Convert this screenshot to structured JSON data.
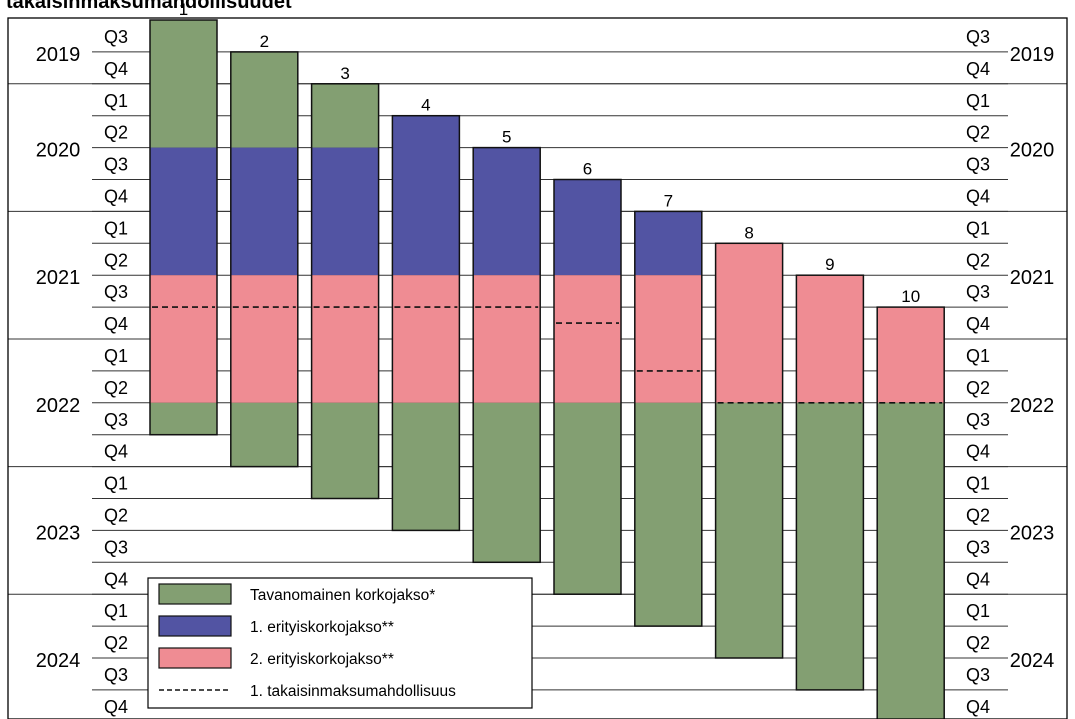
{
  "title_fragment": "takaisinmaksumahdollisuudet",
  "chart_data": {
    "type": "bar",
    "subtype": "floating-stacked-timeline",
    "time_axis": {
      "start": "2019 Q3",
      "end": "2024 Q4",
      "years": [
        {
          "year": "2019",
          "quarters": [
            "Q3",
            "Q4"
          ]
        },
        {
          "year": "2020",
          "quarters": [
            "Q1",
            "Q2",
            "Q3",
            "Q4"
          ]
        },
        {
          "year": "2021",
          "quarters": [
            "Q1",
            "Q2",
            "Q3",
            "Q4"
          ]
        },
        {
          "year": "2022",
          "quarters": [
            "Q1",
            "Q2",
            "Q3",
            "Q4"
          ]
        },
        {
          "year": "2023",
          "quarters": [
            "Q1",
            "Q2",
            "Q3",
            "Q4"
          ]
        },
        {
          "year": "2024",
          "quarters": [
            "Q1",
            "Q2",
            "Q3",
            "Q4"
          ]
        }
      ]
    },
    "bars": [
      {
        "label": "1",
        "segments": [
          {
            "period": "Tavanomainen korkojakso*",
            "start": "2019 Q3",
            "end": "2020 Q2"
          },
          {
            "period": "1. erityiskorkojakso**",
            "start": "2020 Q3",
            "end": "2021 Q2"
          },
          {
            "period": "2. erityiskorkojakso**",
            "start": "2021 Q3",
            "end": "2022 Q2"
          },
          {
            "period": "Tavanomainen korkojakso*",
            "start": "2022 Q3",
            "end": "2022 Q3"
          }
        ],
        "repayment_option": "2021 Q3/Q4"
      },
      {
        "label": "2",
        "segments": [
          {
            "period": "Tavanomainen korkojakso*",
            "start": "2019 Q4",
            "end": "2020 Q2"
          },
          {
            "period": "1. erityiskorkojakso**",
            "start": "2020 Q3",
            "end": "2021 Q2"
          },
          {
            "period": "2. erityiskorkojakso**",
            "start": "2021 Q3",
            "end": "2022 Q2"
          },
          {
            "period": "Tavanomainen korkojakso*",
            "start": "2022 Q3",
            "end": "2022 Q4"
          }
        ],
        "repayment_option": "2021 Q3/Q4"
      },
      {
        "label": "3",
        "segments": [
          {
            "period": "Tavanomainen korkojakso*",
            "start": "2020 Q1",
            "end": "2020 Q2"
          },
          {
            "period": "1. erityiskorkojakso**",
            "start": "2020 Q3",
            "end": "2021 Q2"
          },
          {
            "period": "2. erityiskorkojakso**",
            "start": "2021 Q3",
            "end": "2022 Q2"
          },
          {
            "period": "Tavanomainen korkojakso*",
            "start": "2022 Q3",
            "end": "2023 Q1"
          }
        ],
        "repayment_option": "2021 Q3/Q4"
      },
      {
        "label": "4",
        "segments": [
          {
            "period": "1. erityiskorkojakso**",
            "start": "2020 Q2",
            "end": "2021 Q2"
          },
          {
            "period": "2. erityiskorkojakso**",
            "start": "2021 Q3",
            "end": "2022 Q2"
          },
          {
            "period": "Tavanomainen korkojakso*",
            "start": "2022 Q3",
            "end": "2023 Q2"
          }
        ],
        "repayment_option": "2021 Q3/Q4"
      },
      {
        "label": "5",
        "segments": [
          {
            "period": "1. erityiskorkojakso**",
            "start": "2020 Q3",
            "end": "2021 Q2"
          },
          {
            "period": "2. erityiskorkojakso**",
            "start": "2021 Q3",
            "end": "2022 Q2"
          },
          {
            "period": "Tavanomainen korkojakso*",
            "start": "2022 Q3",
            "end": "2023 Q3"
          }
        ],
        "repayment_option": "2021 Q3/Q4"
      },
      {
        "label": "6",
        "segments": [
          {
            "period": "1. erityiskorkojakso**",
            "start": "2020 Q4",
            "end": "2021 Q2"
          },
          {
            "period": "2. erityiskorkojakso**",
            "start": "2021 Q3",
            "end": "2022 Q2"
          },
          {
            "period": "Tavanomainen korkojakso*",
            "start": "2022 Q3",
            "end": "2023 Q4"
          }
        ],
        "repayment_option": "2021 Q4"
      },
      {
        "label": "7",
        "segments": [
          {
            "period": "1. erityiskorkojakso**",
            "start": "2021 Q1",
            "end": "2021 Q2"
          },
          {
            "period": "2. erityiskorkojakso**",
            "start": "2021 Q3",
            "end": "2022 Q2"
          },
          {
            "period": "Tavanomainen korkojakso*",
            "start": "2022 Q3",
            "end": "2024 Q1"
          }
        ],
        "repayment_option": "2022 Q1/Q2"
      },
      {
        "label": "8",
        "segments": [
          {
            "period": "2. erityiskorkojakso**",
            "start": "2021 Q2",
            "end": "2022 Q2"
          },
          {
            "period": "Tavanomainen korkojakso*",
            "start": "2022 Q3",
            "end": "2024 Q2"
          }
        ],
        "repayment_option": "2022 Q2/Q3"
      },
      {
        "label": "9",
        "segments": [
          {
            "period": "2. erityiskorkojakso**",
            "start": "2021 Q3",
            "end": "2022 Q2"
          },
          {
            "period": "Tavanomainen korkojakso*",
            "start": "2022 Q3",
            "end": "2024 Q3"
          }
        ],
        "repayment_option": "2022 Q2/Q3"
      },
      {
        "label": "10",
        "segments": [
          {
            "period": "2. erityiskorkojakso**",
            "start": "2021 Q4",
            "end": "2022 Q2"
          },
          {
            "period": "Tavanomainen korkojakso*",
            "start": "2022 Q3",
            "end": "2024 Q4"
          }
        ],
        "repayment_option": "2022 Q2/Q3"
      }
    ],
    "legend": {
      "placement": "bottom-left",
      "entries": [
        {
          "label": "Tavanomainen korkojakso*",
          "color": "#839f72"
        },
        {
          "label": "1. erityiskorkojakso**",
          "color": "#5254a3"
        },
        {
          "label": "2. erityiskorkojakso**",
          "color": "#ef8c93"
        },
        {
          "label": "1. takaisinmaksumahdollisuus",
          "style": "dashed-line"
        }
      ]
    },
    "colors": {
      "Tavanomainen korkojakso*": "#839f72",
      "1. erityiskorkojakso**": "#5254a3",
      "2. erityiskorkojakso**": "#ef8c93"
    }
  }
}
